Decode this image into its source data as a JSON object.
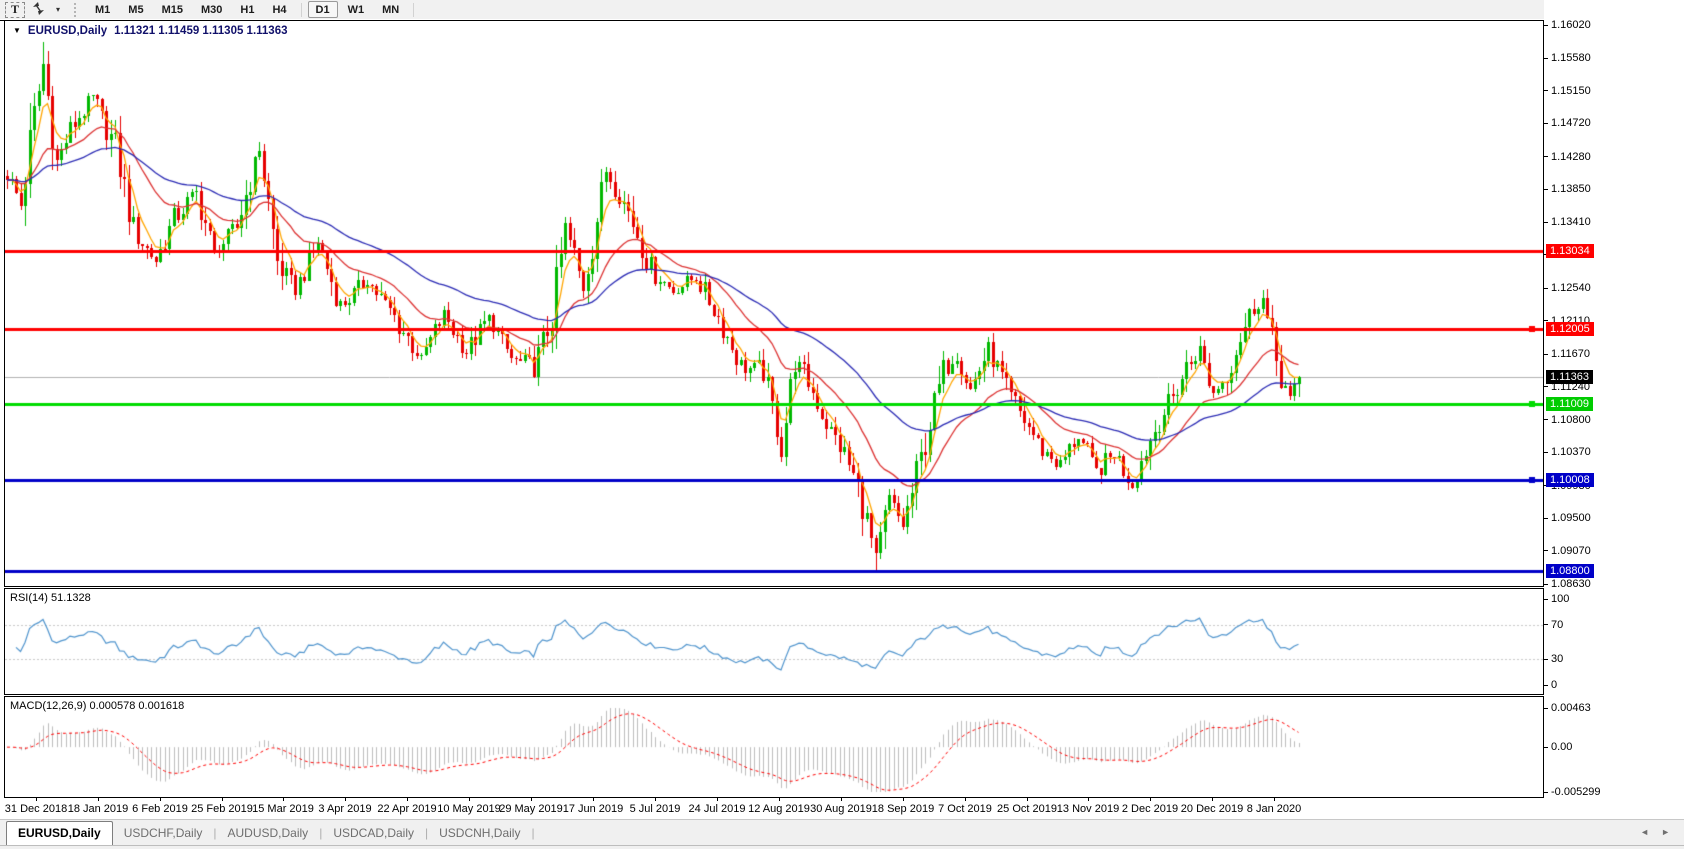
{
  "toolbar": {
    "text_tool_label": "T",
    "timeframes": [
      {
        "label": "M1",
        "active": false
      },
      {
        "label": "M5",
        "active": false
      },
      {
        "label": "M15",
        "active": false
      },
      {
        "label": "M30",
        "active": false
      },
      {
        "label": "H1",
        "active": false
      },
      {
        "label": "H4",
        "active": false
      },
      {
        "label": "D1",
        "active": true
      },
      {
        "label": "W1",
        "active": false
      },
      {
        "label": "MN",
        "active": false
      }
    ]
  },
  "icons": {
    "window_menu": "▼",
    "toolbar_caret": "▾",
    "tab_scroll_left": "◄",
    "tab_scroll_right": "►"
  },
  "chart_window": {
    "symbol_title": "EURUSD,Daily",
    "ohlc_text": "1.11321 1.11459 1.11305 1.11363"
  },
  "indicators": {
    "rsi": {
      "label": "RSI(14) 51.1328",
      "period": 14,
      "current": 51.1328,
      "axis_ticks": [
        {
          "v": 100,
          "t": "100"
        },
        {
          "v": 70,
          "t": "70"
        },
        {
          "v": 30,
          "t": "30"
        },
        {
          "v": 0,
          "t": "0"
        }
      ],
      "levels": [
        70,
        30
      ],
      "color": "#4f94cd"
    },
    "macd": {
      "label": "MACD(12,26,9) 0.000578 0.001618",
      "fast": 12,
      "slow": 26,
      "signal": 9,
      "macd_value": 0.000578,
      "signal_value": 0.001618,
      "axis_ticks": [
        {
          "v": 0.00463,
          "t": "0.00463"
        },
        {
          "v": 0,
          "t": "0.00"
        },
        {
          "v": -0.005299,
          "t": "-0.005299"
        }
      ],
      "bar_color": "#bdbdbd",
      "signal_color": "#ff0000"
    }
  },
  "price_markers": [
    {
      "text": "1.13034",
      "price": 1.13034,
      "bg": "#ff0000",
      "fg": "#ffffff",
      "kind": "line"
    },
    {
      "text": "1.12005",
      "price": 1.12005,
      "bg": "#ff0000",
      "fg": "#ffffff",
      "kind": "line"
    },
    {
      "text": "1.11363",
      "price": 1.11363,
      "bg": "#000000",
      "fg": "#ffffff",
      "kind": "current"
    },
    {
      "text": "1.11009",
      "price": 1.11009,
      "bg": "#00cc00",
      "fg": "#ffffff",
      "kind": "line"
    },
    {
      "text": "1.10008",
      "price": 1.10008,
      "bg": "#0000c8",
      "fg": "#ffffff",
      "kind": "line"
    },
    {
      "text": "1.08800",
      "price": 1.088,
      "bg": "#0000c8",
      "fg": "#ffffff",
      "kind": "line"
    }
  ],
  "tabs": {
    "items": [
      {
        "label": "EURUSD,Daily",
        "active": true
      },
      {
        "label": "USDCHF,Daily",
        "active": false
      },
      {
        "label": "AUDUSD,Daily",
        "active": false
      },
      {
        "label": "USDCAD,Daily",
        "active": false
      },
      {
        "label": "USDCNH,Daily",
        "active": false
      }
    ]
  },
  "colors": {
    "bull": "#00b800",
    "bear": "#e60000",
    "current_line": "#b0b0b0",
    "line_red": "#ff0000",
    "line_green": "#00dc00",
    "line_blue": "#0000c8",
    "level_dash": "#c8c8c8"
  },
  "chart_data": {
    "type": "candlestick",
    "symbol": "EURUSD",
    "timeframe": "Daily",
    "ohlc_display": {
      "open": "1.11321",
      "high": "1.11459",
      "low": "1.11305",
      "close": "1.11363"
    },
    "bars": 288,
    "bar_spacing_px": 4.5,
    "last_close": 1.11363,
    "y_range": [
      1.0863,
      1.1602
    ],
    "price_ticks": [
      "1.16020",
      "1.15580",
      "1.15150",
      "1.14720",
      "1.14280",
      "1.13850",
      "1.13410",
      "1.12980",
      "1.12540",
      "1.12110",
      "1.11670",
      "1.11240",
      "1.10800",
      "1.10370",
      "1.09930",
      "1.09500",
      "1.09070",
      "1.08630"
    ],
    "x_tick_dates": [
      "31 Dec 2018",
      "18 Jan 2019",
      "6 Feb 2019",
      "25 Feb 2019",
      "15 Mar 2019",
      "3 Apr 2019",
      "22 Apr 2019",
      "10 May 2019",
      "29 May 2019",
      "17 Jun 2019",
      "5 Jul 2019",
      "24 Jul 2019",
      "12 Aug 2019",
      "30 Aug 2019",
      "18 Sep 2019",
      "7 Oct 2019",
      "25 Oct 2019",
      "13 Nov 2019",
      "2 Dec 2019",
      "20 Dec 2019",
      "8 Jan 2020"
    ],
    "x_tick_first_index": 6.4,
    "x_tick_index_step": 13.76,
    "price_path_anchors": [
      [
        0,
        1.1405
      ],
      [
        3,
        1.1365
      ],
      [
        6,
        1.148
      ],
      [
        8,
        1.155
      ],
      [
        11,
        1.142
      ],
      [
        14,
        1.1465
      ],
      [
        19,
        1.1505
      ],
      [
        24,
        1.144
      ],
      [
        28,
        1.133
      ],
      [
        33,
        1.129
      ],
      [
        37,
        1.1345
      ],
      [
        42,
        1.138
      ],
      [
        46,
        1.13
      ],
      [
        51,
        1.1335
      ],
      [
        56,
        1.144
      ],
      [
        60,
        1.129
      ],
      [
        64,
        1.125
      ],
      [
        69,
        1.1315
      ],
      [
        74,
        1.123
      ],
      [
        80,
        1.1265
      ],
      [
        86,
        1.1215
      ],
      [
        92,
        1.116
      ],
      [
        97,
        1.122
      ],
      [
        102,
        1.117
      ],
      [
        107,
        1.1215
      ],
      [
        112,
        1.116
      ],
      [
        117,
        1.115
      ],
      [
        121,
        1.1215
      ],
      [
        124,
        1.1335
      ],
      [
        128,
        1.1255
      ],
      [
        133,
        1.141
      ],
      [
        138,
        1.1355
      ],
      [
        143,
        1.128
      ],
      [
        148,
        1.125
      ],
      [
        153,
        1.127
      ],
      [
        158,
        1.1215
      ],
      [
        163,
        1.115
      ],
      [
        168,
        1.1145
      ],
      [
        170,
        1.1095
      ],
      [
        172,
        1.104
      ],
      [
        175,
        1.116
      ],
      [
        178,
        1.113
      ],
      [
        182,
        1.1075
      ],
      [
        186,
        1.1035
      ],
      [
        189,
        1.099
      ],
      [
        191,
        1.0945
      ],
      [
        193,
        1.0895
      ],
      [
        196,
        1.0975
      ],
      [
        199,
        1.094
      ],
      [
        202,
        1.1005
      ],
      [
        205,
        1.1075
      ],
      [
        208,
        1.1145
      ],
      [
        211,
        1.117
      ],
      [
        214,
        1.112
      ],
      [
        218,
        1.1175
      ],
      [
        222,
        1.112
      ],
      [
        226,
        1.108
      ],
      [
        230,
        1.104
      ],
      [
        234,
        1.102
      ],
      [
        238,
        1.106
      ],
      [
        242,
        1.101
      ],
      [
        246,
        1.1035
      ],
      [
        250,
        1.0995
      ],
      [
        253,
        1.104
      ],
      [
        256,
        1.108
      ],
      [
        259,
        1.111
      ],
      [
        262,
        1.115
      ],
      [
        265,
        1.117
      ],
      [
        268,
        1.1115
      ],
      [
        271,
        1.114
      ],
      [
        274,
        1.119
      ],
      [
        277,
        1.123
      ],
      [
        279,
        1.1238
      ],
      [
        281,
        1.118
      ],
      [
        283,
        1.114
      ],
      [
        285,
        1.1105
      ],
      [
        287,
        1.11363
      ]
    ],
    "wick_extremes": {
      "8": {
        "high": 1.158
      },
      "172": {
        "low": 1.1026
      },
      "193": {
        "low": 1.0879
      }
    },
    "moving_averages": [
      {
        "name": "fast",
        "period": 5,
        "color": "#ffa500"
      },
      {
        "name": "medium",
        "period": 20,
        "color": "#dc3232"
      },
      {
        "name": "slow",
        "period": 50,
        "color": "#2a2ab4"
      }
    ],
    "horizontal_lines": [
      {
        "price": 1.13034,
        "color": "#ff0000",
        "width": 3,
        "handle": false
      },
      {
        "price": 1.12005,
        "color": "#ff0000",
        "width": 3,
        "handle": true
      },
      {
        "price": 1.11009,
        "color": "#00dc00",
        "width": 3,
        "handle": true
      },
      {
        "price": 1.10008,
        "color": "#0000c8",
        "width": 3,
        "handle": true
      },
      {
        "price": 1.088,
        "color": "#0000c8",
        "width": 3,
        "handle": false
      }
    ]
  }
}
